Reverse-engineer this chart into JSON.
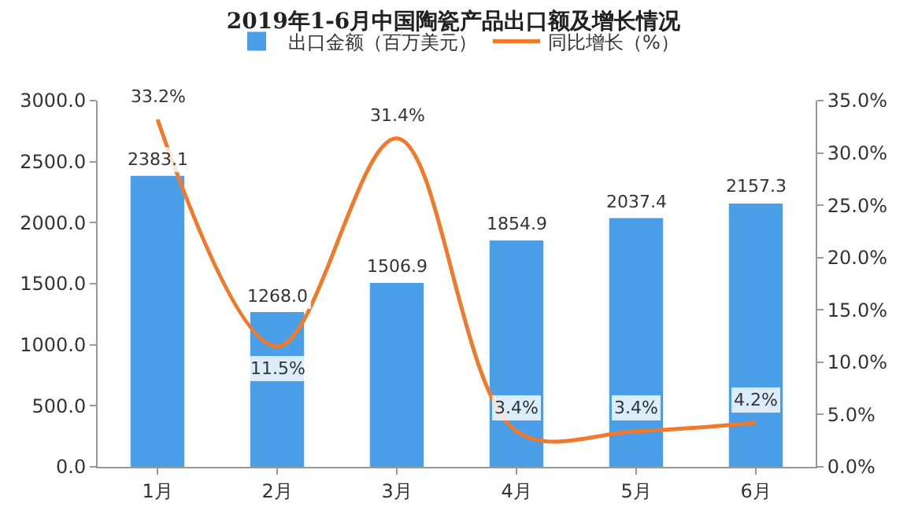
{
  "chart_data": {
    "type": "bar",
    "title": "2019年1-6月中国陶瓷产品出口额及增长情况",
    "categories": [
      "1月",
      "2月",
      "3月",
      "4月",
      "5月",
      "6月"
    ],
    "series": [
      {
        "name": "出口金额（百万美元）",
        "color": "#4a9fe8",
        "values": [
          2383.1,
          1268.0,
          1506.9,
          1854.9,
          2037.4,
          2157.3
        ],
        "value_labels": [
          "2383.1",
          "1268.0",
          "1506.9",
          "1854.9",
          "2037.4",
          "2157.3"
        ]
      },
      {
        "name": "同比增长（%）",
        "type": "line",
        "axis": "y2",
        "color": "#f07a2c",
        "values": [
          33.2,
          11.5,
          31.4,
          3.4,
          3.4,
          4.2
        ],
        "value_labels": [
          "33.2%",
          "11.5%",
          "31.4%",
          "3.4%",
          "3.4%",
          "4.2%"
        ]
      }
    ],
    "ylim": [
      0,
      3000
    ],
    "yticks": [
      {
        "value": 0,
        "label": "0.0"
      },
      {
        "value": 500,
        "label": "500.0"
      },
      {
        "value": 1000,
        "label": "1000.0"
      },
      {
        "value": 1500,
        "label": "1500.0"
      },
      {
        "value": 2000,
        "label": "2000.0"
      },
      {
        "value": 2500,
        "label": "2500.0"
      },
      {
        "value": 3000,
        "label": "3000.0"
      }
    ],
    "y2lim": [
      0,
      35
    ],
    "y2ticks": [
      {
        "value": 0,
        "label": "0.0%"
      },
      {
        "value": 5,
        "label": "5.0%"
      },
      {
        "value": 10,
        "label": "10.0%"
      },
      {
        "value": 15,
        "label": "15.0%"
      },
      {
        "value": 20,
        "label": "20.0%"
      },
      {
        "value": 25,
        "label": "25.0%"
      },
      {
        "value": 30,
        "label": "30.0%"
      },
      {
        "value": 35,
        "label": "35.0%"
      }
    ],
    "legend": "top",
    "grid": false
  }
}
